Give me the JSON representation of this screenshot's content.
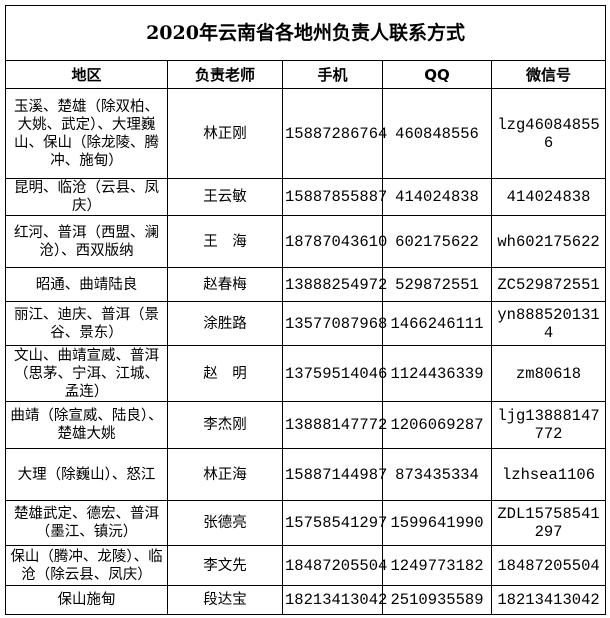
{
  "title": "2020年云南省各地州负责人联系方式",
  "headers": [
    "地区",
    "负责老师",
    "手机",
    "QQ",
    "微信号"
  ],
  "rows": [
    {
      "region": "玉溪、楚雄（除双柏、大姚、武定）、大理巍山、保山（除龙陵、腾冲、施甸）",
      "teacher": "林正刚",
      "phone": "15887286764",
      "qq": "460848556",
      "wechat": "lzg460848556"
    },
    {
      "region": "昆明、临沧（云县、凤庆）",
      "teacher": "王云敏",
      "phone": "15887855887",
      "qq": "414024838",
      "wechat": "414024838"
    },
    {
      "region": "红河、普洱（西盟、澜沧）、西双版纳",
      "teacher": "王　海",
      "phone": "18787043610",
      "qq": "602175622",
      "wechat": "wh602175622"
    },
    {
      "region": "昭通、曲靖陆良",
      "teacher": "赵春梅",
      "phone": "13888254972",
      "qq": "529872551",
      "wechat": "ZC529872551"
    },
    {
      "region": "丽江、迪庆、普洱（景谷、景东）",
      "teacher": "涂胜路",
      "phone": "13577087968",
      "qq": "1466246111",
      "wechat": "yn8885201314"
    },
    {
      "region": "文山、曲靖宣威、普洱（思茅、宁洱、江城、孟连）",
      "teacher": "赵　明",
      "phone": "13759514046",
      "qq": "1124436339",
      "wechat": "zm80618"
    },
    {
      "region": "曲靖（除宣威、陆良）、楚雄大姚",
      "teacher": "李杰刚",
      "phone": "13888147772",
      "qq": "1206069287",
      "wechat": "ljg13888147772"
    },
    {
      "region": "大理（除巍山）、怒江",
      "teacher": "林正海",
      "phone": "15887144987",
      "qq": "873435334",
      "wechat": "lzhsea1106"
    },
    {
      "region": "楚雄武定、德宏、普洱（墨江、镇沅）",
      "teacher": "张德亮",
      "phone": "15758541297",
      "qq": "1599641990",
      "wechat": "ZDL15758541297"
    },
    {
      "region": "保山（腾冲、龙陵）、临沧（除云县、凤庆）",
      "teacher": "李文先",
      "phone": "18487205504",
      "qq": "1249773182",
      "wechat": "18487205504"
    },
    {
      "region": "保山施甸",
      "teacher": "段达宝",
      "phone": "18213413042",
      "qq": "2510935589",
      "wechat": "18213413042"
    }
  ]
}
